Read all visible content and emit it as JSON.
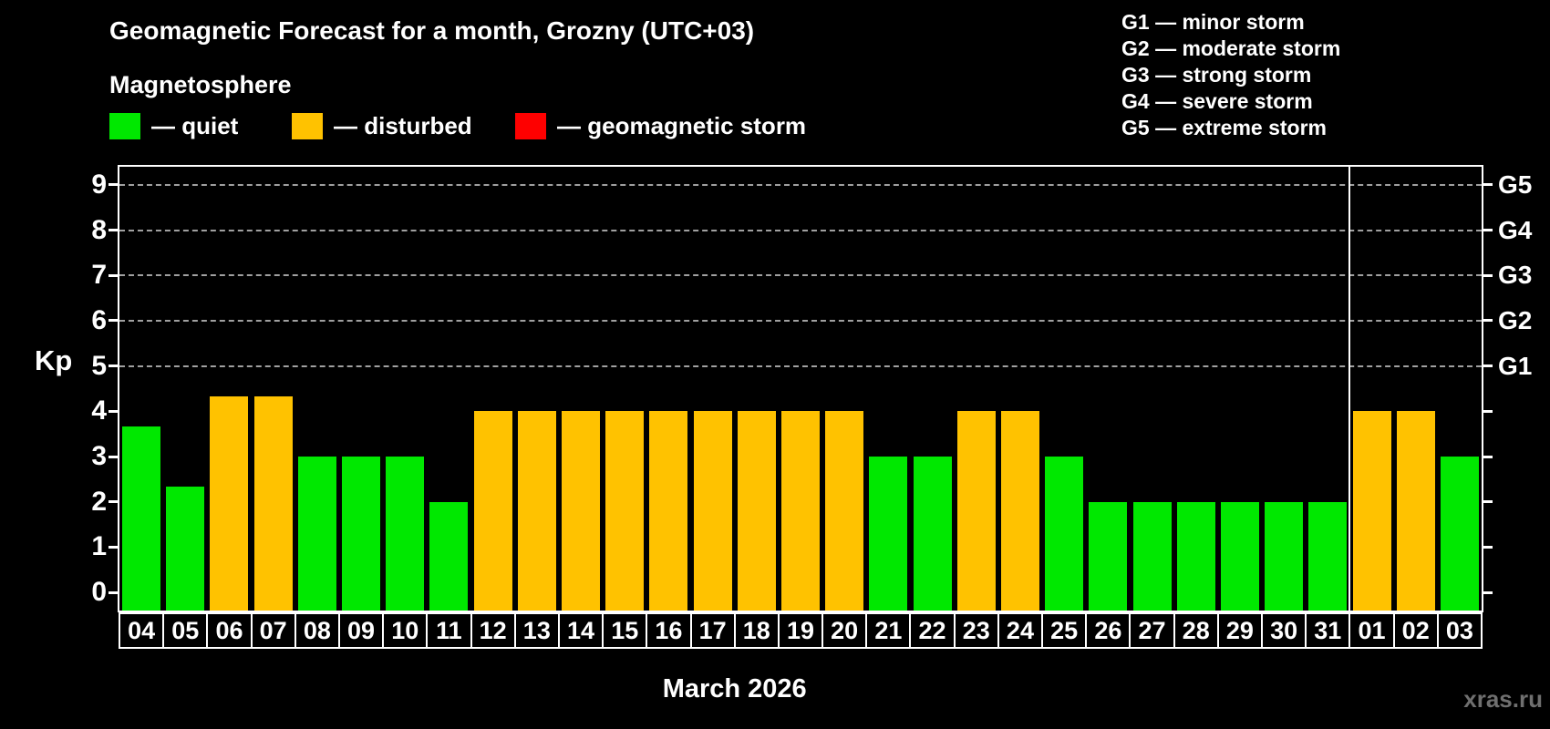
{
  "header": {
    "title": "Geomagnetic Forecast for a month, Grozny (UTC+03)",
    "subtitle": "Magnetosphere"
  },
  "legend": {
    "quiet": {
      "label": "— quiet",
      "color": "#00e800"
    },
    "disturbed": {
      "label": "— disturbed",
      "color": "#ffc200"
    },
    "storm": {
      "label": "— geomagnetic storm",
      "color": "#fe0000"
    }
  },
  "g_scale_legend": {
    "items": [
      "G1 — minor storm",
      "G2 — moderate storm",
      "G3 — strong storm",
      "G4 — severe storm",
      "G5 — extreme storm"
    ]
  },
  "footer": {
    "month_label": "March 2026",
    "watermark": "xras.ru"
  },
  "chart_data": {
    "type": "bar",
    "title": "Geomagnetic Forecast for a month, Grozny (UTC+03)",
    "xlabel": "March 2026",
    "ylabel": "Kp",
    "ylim": [
      -0.4,
      9.4
    ],
    "yticks": [
      0,
      1,
      2,
      3,
      4,
      5,
      6,
      7,
      8,
      9
    ],
    "gridlines_at": [
      5,
      6,
      7,
      8,
      9
    ],
    "grid": "horizontal dashed lines at Kp 5–9 only",
    "legend_position": "top-left",
    "right_axis": [
      {
        "kp": 5,
        "label": "G1"
      },
      {
        "kp": 6,
        "label": "G2"
      },
      {
        "kp": 7,
        "label": "G3"
      },
      {
        "kp": 8,
        "label": "G4"
      },
      {
        "kp": 9,
        "label": "G5"
      }
    ],
    "categories": [
      "04",
      "05",
      "06",
      "07",
      "08",
      "09",
      "10",
      "11",
      "12",
      "13",
      "14",
      "15",
      "16",
      "17",
      "18",
      "19",
      "20",
      "21",
      "22",
      "23",
      "24",
      "25",
      "26",
      "27",
      "28",
      "29",
      "30",
      "31",
      "01",
      "02",
      "03"
    ],
    "values": [
      3.67,
      2.33,
      4.33,
      4.33,
      3,
      3,
      3,
      2,
      4,
      4,
      4,
      4,
      4,
      4,
      4,
      4,
      4,
      3,
      3,
      4,
      4,
      3,
      2,
      2,
      2,
      2,
      2,
      2,
      4,
      4,
      3
    ],
    "month_boundary_after_index": 27,
    "colors": {
      "quiet": "#00e800",
      "disturbed": "#ffc200",
      "storm": "#fe0000"
    },
    "color_rule": {
      "disturbed_min_kp": 4,
      "storm_min_kp": 5
    }
  }
}
